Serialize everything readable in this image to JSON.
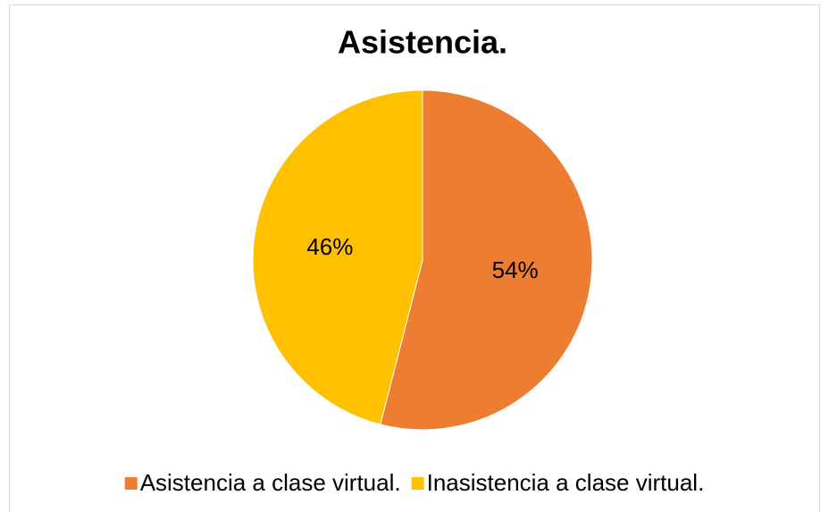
{
  "chart_data": {
    "type": "pie",
    "title": "Asistencia.",
    "categories": [
      "Asistencia a clase virtual.",
      "Inasistencia a clase virtual."
    ],
    "values": [
      54,
      46
    ],
    "value_labels": [
      "54%",
      "46%"
    ],
    "colors": [
      "#ED7D31",
      "#FFC000"
    ],
    "legend": "bottom"
  }
}
